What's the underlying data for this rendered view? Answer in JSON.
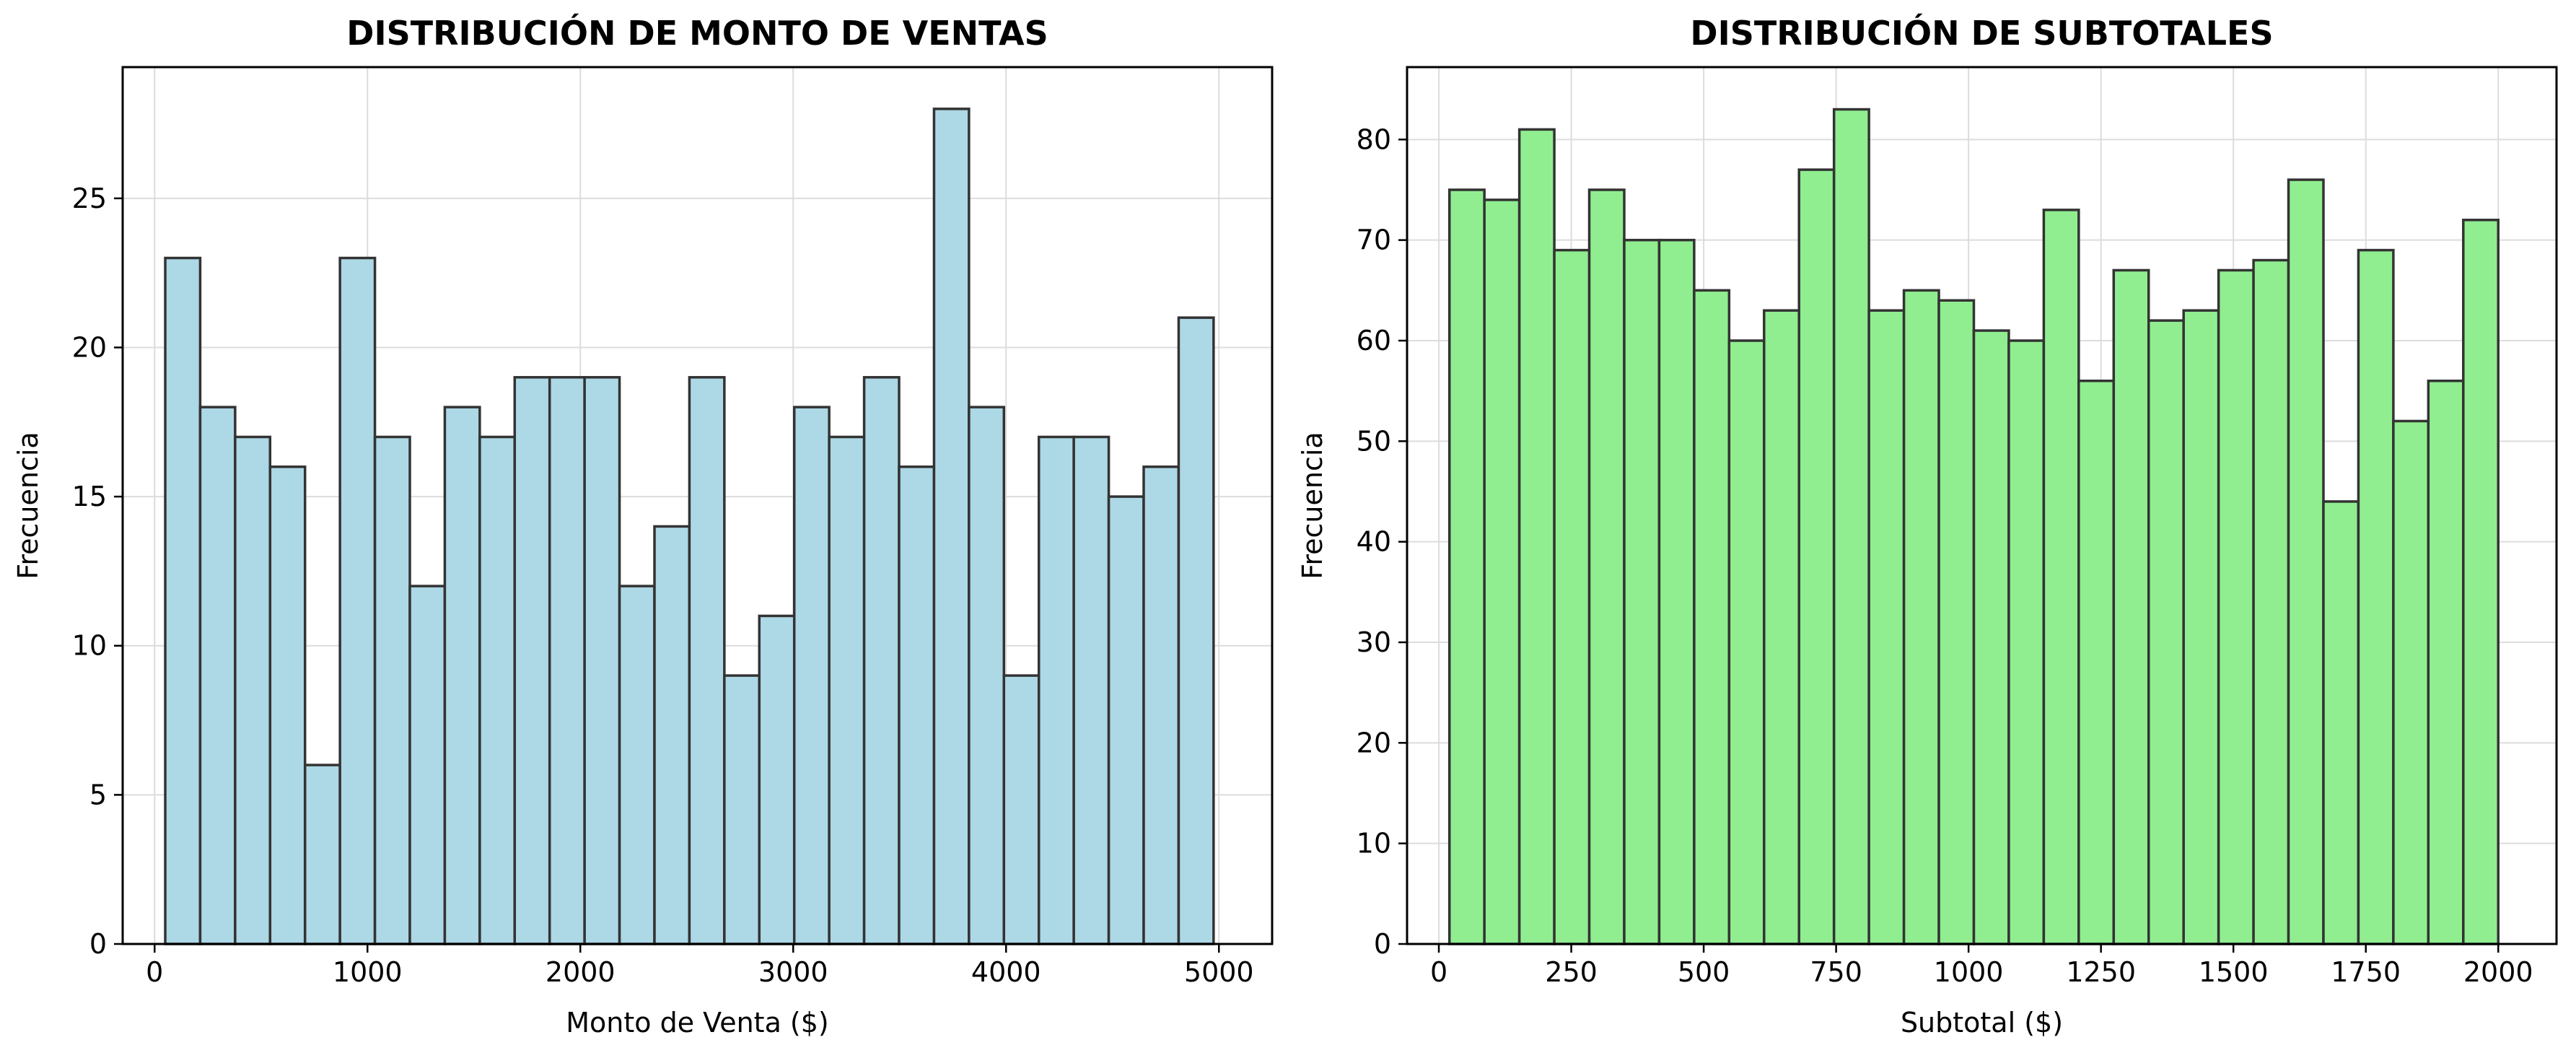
{
  "chart_data": [
    {
      "type": "bar",
      "title": "DISTRIBUCIÓN DE MONTO DE VENTAS",
      "xlabel": "Monto de Venta ($)",
      "ylabel": "Frecuencia",
      "xlim": [
        -150,
        5250
      ],
      "ylim": [
        0,
        29.4
      ],
      "xticks": [
        0,
        1000,
        2000,
        3000,
        4000,
        5000
      ],
      "yticks": [
        0,
        5,
        10,
        15,
        20,
        25
      ],
      "grid": true,
      "bar_color": "#add8e6",
      "edge_color": "#333333",
      "bin_start": 50,
      "bin_end": 4975,
      "values": [
        23,
        18,
        17,
        16,
        6,
        23,
        17,
        12,
        18,
        17,
        19,
        19,
        19,
        12,
        14,
        19,
        9,
        11,
        18,
        17,
        19,
        16,
        28,
        18,
        9,
        17,
        17,
        15,
        16,
        21
      ]
    },
    {
      "type": "bar",
      "title": "DISTRIBUCIÓN DE SUBTOTALES",
      "xlabel": "Subtotal ($)",
      "ylabel": "Frecuencia",
      "xlim": [
        -60,
        2110
      ],
      "ylim": [
        0,
        87.2
      ],
      "xticks": [
        0,
        250,
        500,
        750,
        1000,
        1250,
        1500,
        1750,
        2000
      ],
      "yticks": [
        0,
        10,
        20,
        30,
        40,
        50,
        60,
        70,
        80
      ],
      "grid": true,
      "bar_color": "#90ee90",
      "edge_color": "#333333",
      "bin_start": 20,
      "bin_end": 2000,
      "values": [
        75,
        74,
        81,
        69,
        75,
        70,
        70,
        65,
        60,
        63,
        77,
        83,
        63,
        65,
        64,
        61,
        60,
        73,
        56,
        67,
        62,
        63,
        67,
        68,
        76,
        44,
        69,
        52,
        56,
        72
      ]
    }
  ]
}
